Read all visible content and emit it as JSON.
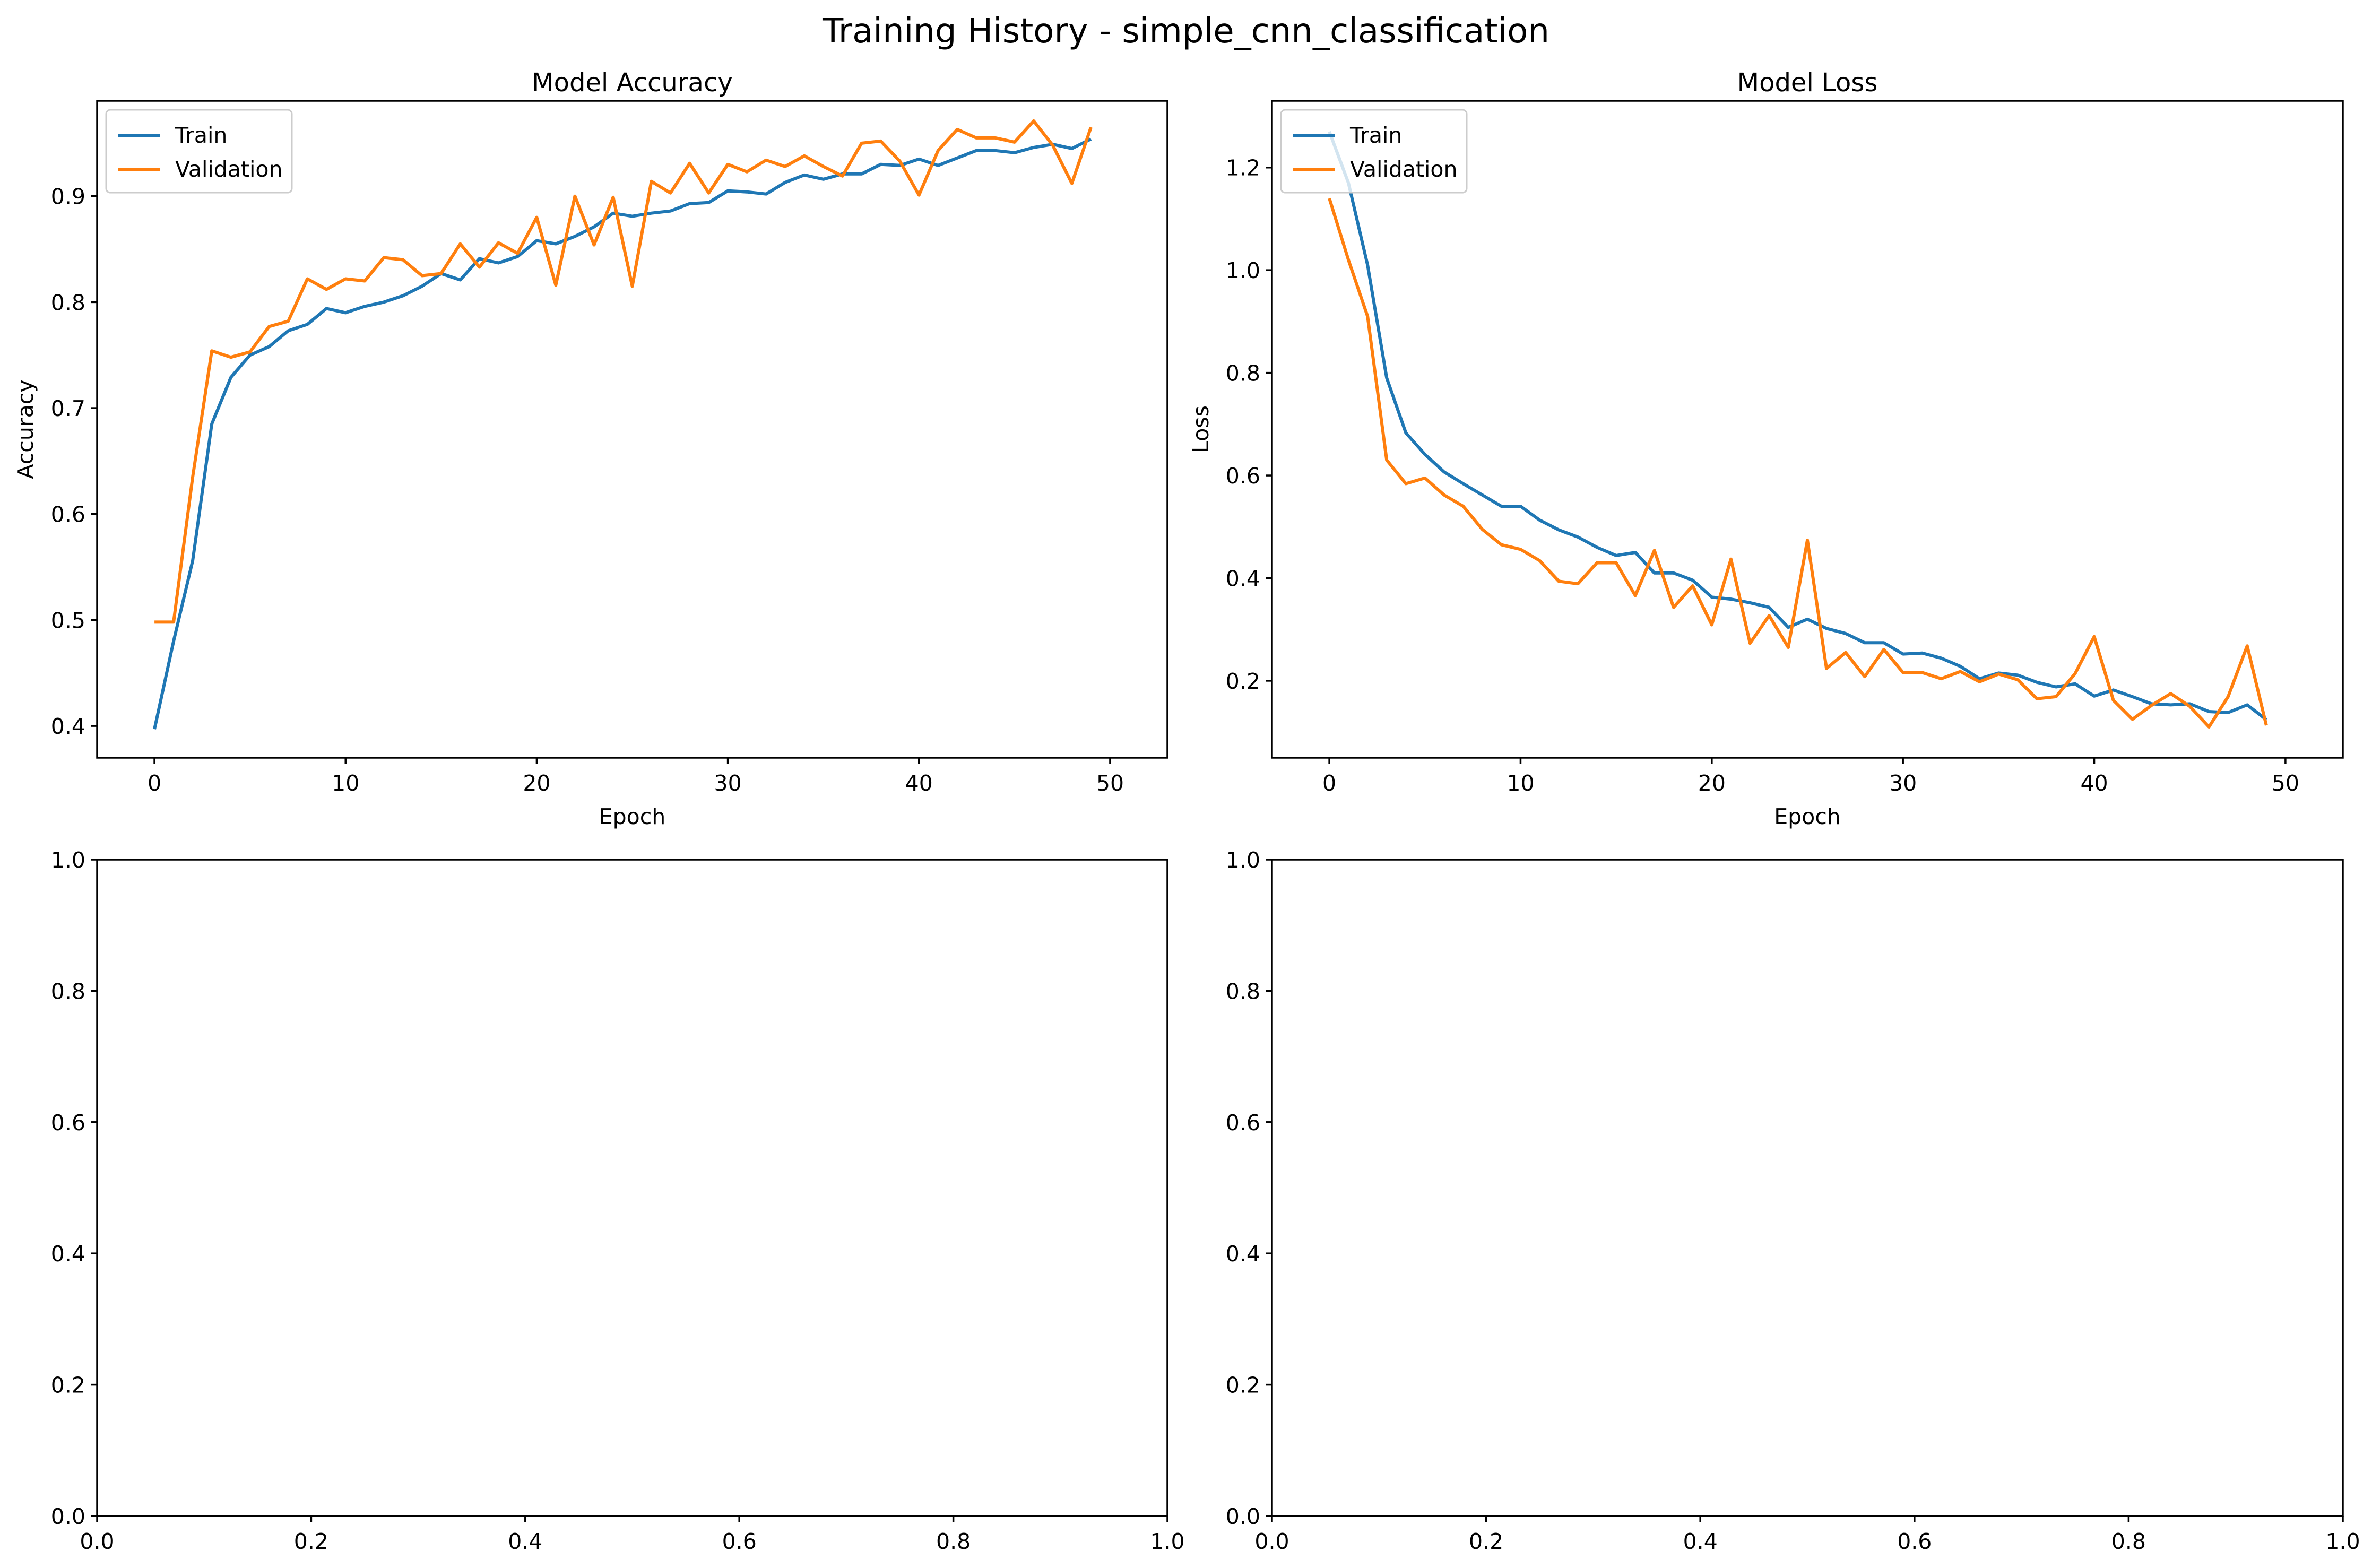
{
  "figure": {
    "title": "Training History - simple_cnn_classification"
  },
  "chart_data": [
    {
      "type": "line",
      "title": "Model Accuracy",
      "xlabel": "Epoch",
      "ylabel": "Accuracy",
      "xlim": [
        -3,
        53
      ],
      "ylim": [
        0.37,
        0.99
      ],
      "xticks": [
        0,
        10,
        20,
        30,
        40,
        50
      ],
      "yticks": [
        0.4,
        0.5,
        0.6,
        0.7,
        0.8,
        0.9
      ],
      "legend": "upper-left",
      "x": [
        0,
        1,
        2,
        3,
        4,
        5,
        6,
        7,
        8,
        9,
        10,
        11,
        12,
        13,
        14,
        15,
        16,
        17,
        18,
        19,
        20,
        21,
        22,
        23,
        24,
        25,
        26,
        27,
        28,
        29,
        30,
        31,
        32,
        33,
        34,
        35,
        36,
        37,
        38,
        39,
        40,
        41,
        42,
        43,
        44,
        45,
        46,
        47,
        48,
        49
      ],
      "series": [
        {
          "name": "Train",
          "color": "#1f77b4",
          "values": [
            0.397,
            0.48,
            0.556,
            0.685,
            0.729,
            0.75,
            0.758,
            0.773,
            0.779,
            0.794,
            0.79,
            0.796,
            0.8,
            0.806,
            0.815,
            0.827,
            0.821,
            0.841,
            0.837,
            0.843,
            0.858,
            0.855,
            0.862,
            0.871,
            0.884,
            0.881,
            0.884,
            0.886,
            0.893,
            0.894,
            0.905,
            0.904,
            0.902,
            0.913,
            0.92,
            0.916,
            0.921,
            0.921,
            0.93,
            0.929,
            0.935,
            0.929,
            0.936,
            0.943,
            0.943,
            0.941,
            0.946,
            0.949,
            0.945,
            0.954
          ]
        },
        {
          "name": "Validation",
          "color": "#ff7f0e",
          "values": [
            0.498,
            0.498,
            0.635,
            0.754,
            0.748,
            0.753,
            0.777,
            0.782,
            0.822,
            0.812,
            0.822,
            0.82,
            0.842,
            0.84,
            0.825,
            0.827,
            0.855,
            0.833,
            0.856,
            0.846,
            0.88,
            0.816,
            0.9,
            0.854,
            0.899,
            0.815,
            0.914,
            0.903,
            0.931,
            0.903,
            0.93,
            0.923,
            0.934,
            0.928,
            0.938,
            0.928,
            0.919,
            0.95,
            0.952,
            0.933,
            0.901,
            0.943,
            0.963,
            0.955,
            0.955,
            0.951,
            0.971,
            0.948,
            0.912,
            0.965
          ]
        }
      ]
    },
    {
      "type": "line",
      "title": "Model Loss",
      "xlabel": "Epoch",
      "ylabel": "Loss",
      "xlim": [
        -3,
        53
      ],
      "ylim": [
        0.05,
        1.33
      ],
      "xticks": [
        0,
        10,
        20,
        30,
        40,
        50
      ],
      "yticks": [
        0.2,
        0.4,
        0.6,
        0.8,
        1.0,
        1.2
      ],
      "legend": "upper-left",
      "x": [
        0,
        1,
        2,
        3,
        4,
        5,
        6,
        7,
        8,
        9,
        10,
        11,
        12,
        13,
        14,
        15,
        16,
        17,
        18,
        19,
        20,
        21,
        22,
        23,
        24,
        25,
        26,
        27,
        28,
        29,
        30,
        31,
        32,
        33,
        34,
        35,
        36,
        37,
        38,
        39,
        40,
        41,
        42,
        43,
        44,
        45,
        46,
        47,
        48,
        49
      ],
      "series": [
        {
          "name": "Train",
          "color": "#1f77b4",
          "values": [
            1.27,
            1.17,
            1.01,
            0.79,
            0.683,
            0.641,
            0.607,
            0.584,
            0.562,
            0.54,
            0.54,
            0.513,
            0.494,
            0.48,
            0.46,
            0.444,
            0.45,
            0.41,
            0.41,
            0.396,
            0.363,
            0.359,
            0.352,
            0.343,
            0.304,
            0.32,
            0.302,
            0.292,
            0.274,
            0.274,
            0.252,
            0.254,
            0.244,
            0.228,
            0.204,
            0.215,
            0.211,
            0.197,
            0.188,
            0.194,
            0.17,
            0.182,
            0.169,
            0.155,
            0.153,
            0.155,
            0.14,
            0.138,
            0.153,
            0.124
          ]
        },
        {
          "name": "Validation",
          "color": "#ff7f0e",
          "values": [
            1.14,
            1.02,
            0.91,
            0.63,
            0.584,
            0.595,
            0.562,
            0.54,
            0.495,
            0.465,
            0.456,
            0.434,
            0.394,
            0.389,
            0.43,
            0.43,
            0.366,
            0.454,
            0.343,
            0.385,
            0.309,
            0.437,
            0.273,
            0.327,
            0.265,
            0.474,
            0.224,
            0.255,
            0.208,
            0.261,
            0.216,
            0.216,
            0.204,
            0.218,
            0.198,
            0.213,
            0.202,
            0.165,
            0.169,
            0.214,
            0.286,
            0.162,
            0.125,
            0.152,
            0.175,
            0.15,
            0.11,
            0.169,
            0.268,
            0.113
          ]
        }
      ]
    },
    {
      "type": "line",
      "title": "",
      "xlabel": "",
      "ylabel": "",
      "xlim": [
        0,
        1
      ],
      "ylim": [
        0,
        1
      ],
      "xticks": [
        0.0,
        0.2,
        0.4,
        0.6,
        0.8,
        1.0
      ],
      "yticks": [
        0.0,
        0.2,
        0.4,
        0.6,
        0.8,
        1.0
      ],
      "x": [],
      "series": []
    },
    {
      "type": "line",
      "title": "",
      "xlabel": "",
      "ylabel": "",
      "xlim": [
        0,
        1
      ],
      "ylim": [
        0,
        1
      ],
      "xticks": [
        0.0,
        0.2,
        0.4,
        0.6,
        0.8,
        1.0
      ],
      "yticks": [
        0.0,
        0.2,
        0.4,
        0.6,
        0.8,
        1.0
      ],
      "x": [],
      "series": []
    }
  ]
}
